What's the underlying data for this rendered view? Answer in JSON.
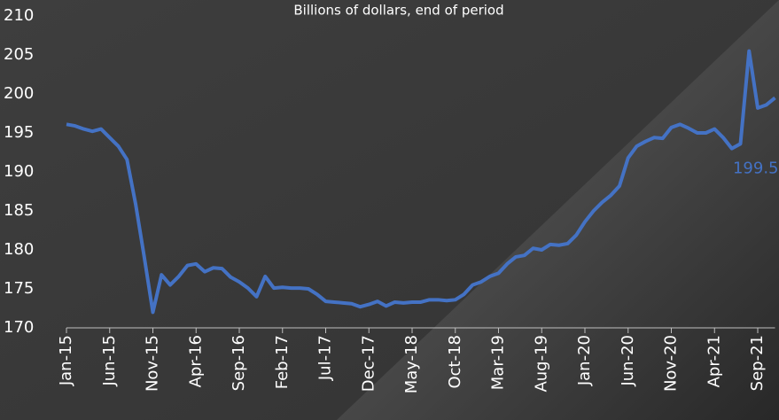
{
  "chart_data": {
    "type": "line",
    "subtitle": "Billions of dollars, end of period",
    "categories": [
      "Jan-15",
      null,
      null,
      null,
      null,
      "Jun-15",
      null,
      null,
      null,
      null,
      "Nov-15",
      null,
      null,
      null,
      null,
      "Apr-16",
      null,
      null,
      null,
      null,
      "Sep-16",
      null,
      null,
      null,
      null,
      "Feb-17",
      null,
      null,
      null,
      null,
      "Jul-17",
      null,
      null,
      null,
      null,
      "Dec-17",
      null,
      null,
      null,
      null,
      "May-18",
      null,
      null,
      null,
      null,
      "Oct-18",
      null,
      null,
      null,
      null,
      "Mar-19",
      null,
      null,
      null,
      null,
      "Aug-19",
      null,
      null,
      null,
      null,
      "Jan-20",
      null,
      null,
      null,
      null,
      "Jun-20",
      null,
      null,
      null,
      null,
      "Nov-20",
      null,
      null,
      null,
      null,
      "Apr-21",
      null,
      null,
      null,
      null,
      "Sep-21",
      null,
      null
    ],
    "values": [
      196.1,
      195.9,
      195.5,
      195.2,
      195.5,
      194.4,
      193.3,
      191.6,
      185.9,
      179.1,
      172.0,
      176.8,
      175.5,
      176.6,
      178.0,
      178.2,
      177.2,
      177.7,
      177.6,
      176.5,
      175.9,
      175.1,
      174.0,
      176.6,
      175.1,
      175.2,
      175.1,
      175.1,
      175.0,
      174.3,
      173.4,
      173.3,
      173.2,
      173.1,
      172.7,
      173.0,
      173.4,
      172.8,
      173.3,
      173.2,
      173.3,
      173.3,
      173.6,
      173.6,
      173.5,
      173.6,
      174.3,
      175.5,
      175.9,
      176.6,
      177.0,
      178.2,
      179.1,
      179.3,
      180.2,
      180.0,
      180.7,
      180.6,
      180.8,
      181.9,
      183.6,
      185.0,
      186.1,
      187.0,
      188.2,
      191.8,
      193.3,
      193.9,
      194.4,
      194.3,
      195.7,
      196.1,
      195.6,
      195.0,
      195.0,
      195.5,
      194.4,
      193.0,
      193.6,
      205.5,
      198.2,
      198.6,
      199.5
    ],
    "value_labels": [
      null,
      null,
      null,
      null,
      null,
      null,
      null,
      null,
      null,
      null,
      null,
      null,
      null,
      null,
      null,
      null,
      null,
      null,
      null,
      null,
      null,
      null,
      null,
      null,
      null,
      null,
      null,
      null,
      null,
      null,
      null,
      null,
      null,
      null,
      null,
      null,
      null,
      null,
      null,
      null,
      null,
      null,
      null,
      null,
      null,
      null,
      null,
      null,
      null,
      null,
      null,
      null,
      null,
      null,
      null,
      null,
      null,
      null,
      null,
      null,
      null,
      null,
      null,
      null,
      null,
      null,
      null,
      null,
      null,
      null,
      null,
      null,
      null,
      null,
      null,
      null,
      null,
      null,
      null,
      null,
      null,
      null,
      "199.5"
    ],
    "color": "#4472c4",
    "ylim": [
      170,
      210
    ],
    "yticks": [
      170,
      175,
      180,
      185,
      190,
      195,
      200,
      205,
      210
    ]
  }
}
